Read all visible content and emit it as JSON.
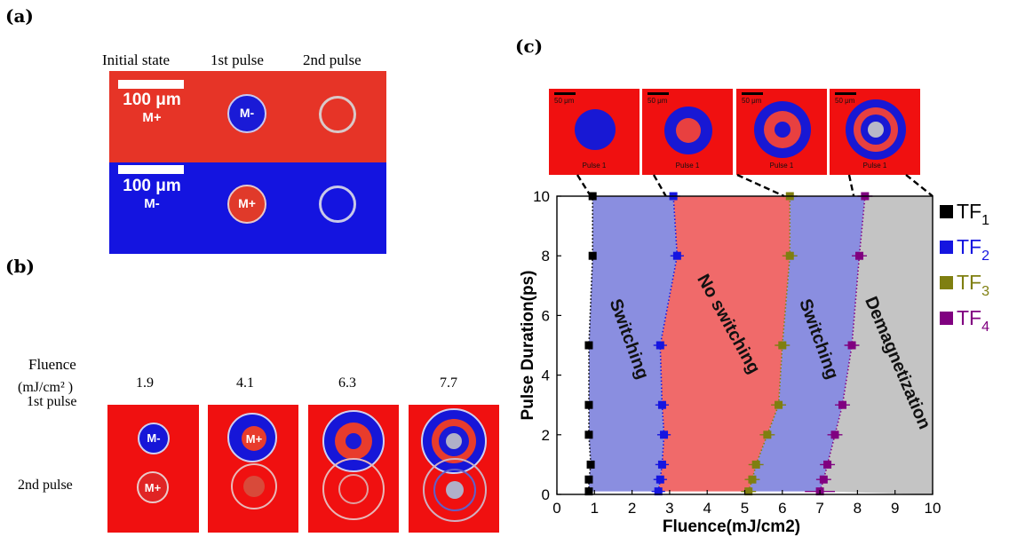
{
  "panels": {
    "a": "(a)",
    "b": "(b)",
    "c": "(c)"
  },
  "panel_a": {
    "col_headers": [
      "Initial state",
      "1st pulse",
      "2nd pulse"
    ],
    "row1": {
      "scale": "100 μm",
      "state": "M+",
      "pulse1": "M-"
    },
    "row2": {
      "scale": "100 μm",
      "state": "M-",
      "pulse1": "M+"
    }
  },
  "panel_b": {
    "fluence_label": "Fluence",
    "fluence_unit": "(mJ/cm² )",
    "fluences": [
      "1.9",
      "4.1",
      "6.3",
      "7.7"
    ],
    "row_labels": [
      "1st pulse",
      "2nd pulse"
    ],
    "spot_labels": {
      "p1": "M-",
      "p2": "M+",
      "p3": "M+"
    }
  },
  "panel_c_images": {
    "scale": "50 μm",
    "caption": "Pulse 1"
  },
  "chart_data": {
    "type": "scatter",
    "xlabel": "Fluence(mJ/cm2)",
    "ylabel": "Pulse Duration(ps)",
    "xlim": [
      0,
      10
    ],
    "ylim": [
      0,
      10
    ],
    "xticks": [
      "0",
      "1",
      "2",
      "3",
      "4",
      "5",
      "6",
      "7",
      "8",
      "9",
      "10"
    ],
    "yticks": [
      "0",
      "2",
      "4",
      "6",
      "8",
      "10"
    ],
    "legend_position": "right",
    "regions": [
      {
        "label": "Switching",
        "color": "#8a8ee0"
      },
      {
        "label": "No switching",
        "color": "#f06a6a"
      },
      {
        "label": "Switching",
        "color": "#8a8ee0"
      },
      {
        "label": "Demagnetization",
        "color": "#c4c4c4"
      }
    ],
    "series": [
      {
        "name": "TF",
        "sub": "1",
        "color": "#000000",
        "x": [
          0.85,
          0.85,
          0.9,
          0.85,
          0.85,
          0.85,
          0.95,
          0.95
        ],
        "y": [
          0.1,
          0.5,
          1,
          2,
          3,
          5,
          8,
          10
        ]
      },
      {
        "name": "TF",
        "sub": "2",
        "color": "#1515e0",
        "x": [
          2.7,
          2.75,
          2.8,
          2.85,
          2.8,
          2.75,
          3.2,
          3.1
        ],
        "y": [
          0.1,
          0.5,
          1,
          2,
          3,
          5,
          8,
          10
        ]
      },
      {
        "name": "TF",
        "sub": "3",
        "color": "#7f7f10",
        "x": [
          5.1,
          5.2,
          5.3,
          5.6,
          5.9,
          6.0,
          6.2,
          6.2
        ],
        "y": [
          0.1,
          0.5,
          1,
          2,
          3,
          5,
          8,
          10
        ]
      },
      {
        "name": "TF",
        "sub": "4",
        "color": "#800080",
        "x": [
          7.0,
          7.1,
          7.2,
          7.4,
          7.6,
          7.85,
          8.05,
          8.2
        ],
        "y": [
          0.1,
          0.5,
          1,
          2,
          3,
          5,
          8,
          10
        ]
      }
    ]
  }
}
